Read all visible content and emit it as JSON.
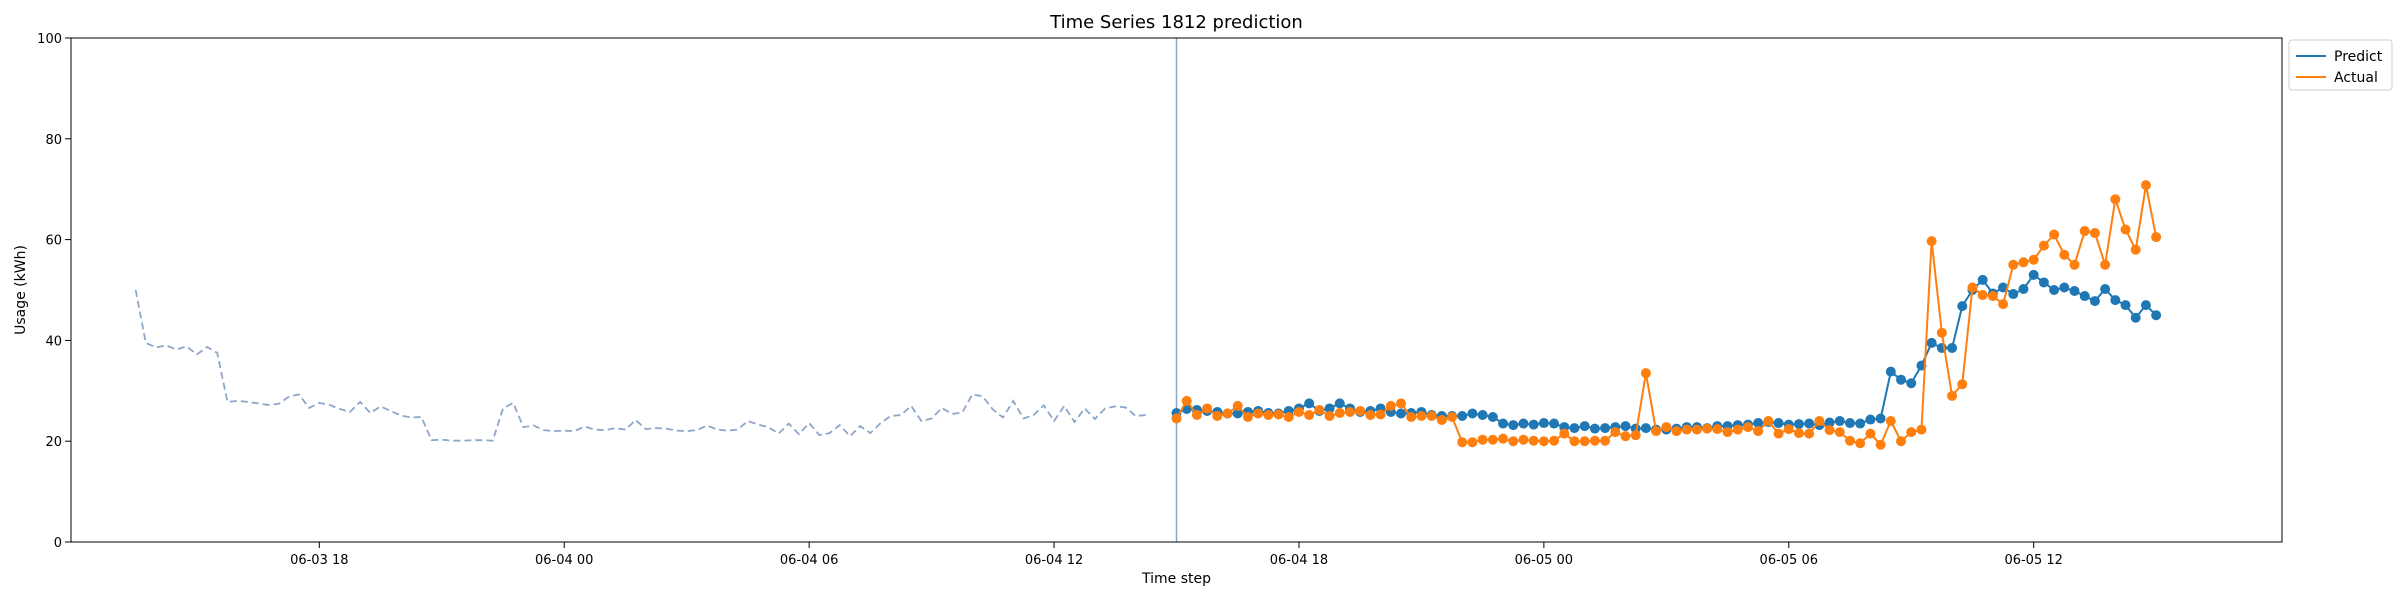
{
  "chart_data": {
    "type": "line",
    "title": "Time Series 1812 prediction",
    "xlabel": "Time step",
    "ylabel": "Usage (kWh)",
    "ylim": [
      0,
      100
    ],
    "y_ticks": [
      "0",
      "20",
      "40",
      "60",
      "80",
      "100"
    ],
    "x_start": "2023-06-03 13:30",
    "x_end": "2023-06-05 16:15",
    "x_view": [
      "2023-06-03 11:55",
      "2023-06-05 18:05"
    ],
    "x_ticks": [
      {
        "t": "2023-06-03 18:00",
        "label": "06-03 18"
      },
      {
        "t": "2023-06-04 00:00",
        "label": "06-04 00"
      },
      {
        "t": "2023-06-04 06:00",
        "label": "06-04 06"
      },
      {
        "t": "2023-06-04 12:00",
        "label": "06-04 12"
      },
      {
        "t": "2023-06-04 18:00",
        "label": "06-04 18"
      },
      {
        "t": "2023-06-05 00:00",
        "label": "06-05 00"
      },
      {
        "t": "2023-06-05 06:00",
        "label": "06-05 06"
      },
      {
        "t": "2023-06-05 12:00",
        "label": "06-05 12"
      }
    ],
    "split_time": "2023-06-04 15:00",
    "legend_position": "top-right outside",
    "colors": {
      "history": "#8ea6c9",
      "predict": "#1f77b4",
      "actual": "#ff7f0e",
      "split": "#8ea6c9"
    },
    "series": [
      {
        "name": "",
        "style": "dashed",
        "start": "2023-06-03 13:30",
        "step_minutes": 15,
        "values": [
          50.0,
          39.5,
          38.6,
          39.0,
          38.2,
          38.8,
          37.2,
          38.7,
          37.5,
          27.8,
          28.0,
          27.8,
          27.5,
          27.2,
          27.4,
          28.8,
          29.3,
          26.6,
          27.6,
          27.2,
          26.4,
          25.8,
          27.8,
          25.6,
          26.9,
          26.0,
          25.1,
          24.7,
          24.8,
          20.2,
          20.3,
          20.1,
          20.1,
          20.2,
          20.2,
          20.1,
          26.5,
          27.6,
          22.8,
          23.1,
          22.2,
          22.0,
          22.1,
          22.0,
          22.9,
          22.3,
          22.2,
          22.6,
          22.3,
          24.2,
          22.4,
          22.6,
          22.5,
          22.1,
          22.0,
          22.2,
          23.1,
          22.3,
          22.1,
          22.3,
          24.0,
          23.3,
          22.8,
          21.5,
          23.5,
          21.4,
          23.6,
          21.2,
          21.6,
          23.2,
          21.0,
          23.0,
          21.6,
          23.6,
          25.0,
          25.2,
          27.0,
          24.0,
          24.5,
          26.6,
          25.4,
          25.7,
          29.3,
          28.9,
          26.3,
          24.7,
          28.0,
          24.5,
          25.2,
          27.1,
          24.0,
          27.0,
          23.8,
          26.5,
          24.4,
          26.5,
          26.9,
          26.7,
          25.0,
          25.2
        ]
      },
      {
        "name": "Predict",
        "start": "2023-06-04 15:00",
        "step_minutes": 15,
        "values": [
          25.6,
          26.4,
          26.2,
          26.0,
          25.8,
          25.5,
          25.5,
          25.8,
          26.0,
          25.6,
          25.5,
          26.0,
          26.5,
          27.5,
          26.0,
          26.5,
          27.5,
          26.5,
          25.8,
          26.0,
          26.5,
          25.8,
          25.5,
          25.6,
          25.8,
          25.2,
          25.0,
          25.0,
          25.0,
          25.5,
          25.2,
          24.8,
          23.5,
          23.2,
          23.5,
          23.3,
          23.6,
          23.5,
          22.8,
          22.6,
          23.0,
          22.5,
          22.6,
          22.8,
          23.0,
          22.5,
          22.6,
          22.3,
          22.3,
          22.5,
          22.8,
          22.8,
          22.6,
          23.0,
          23.0,
          23.2,
          23.3,
          23.6,
          23.8,
          23.6,
          23.3,
          23.4,
          23.5,
          23.2,
          23.7,
          24.0,
          23.6,
          23.5,
          24.3,
          24.5,
          33.8,
          32.2,
          31.5,
          35.0,
          39.5,
          38.5,
          38.5,
          46.8,
          50.0,
          52.0,
          49.3,
          50.5,
          49.2,
          50.2,
          53.0,
          51.5,
          50.0,
          50.5,
          49.8,
          48.8,
          47.8,
          50.2,
          48.0,
          47.0,
          44.5,
          47.0,
          45.0
        ]
      },
      {
        "name": "Actual",
        "start": "2023-06-04 15:00",
        "step_minutes": 15,
        "values": [
          24.5,
          28.0,
          25.2,
          26.5,
          25.0,
          25.5,
          27.0,
          24.8,
          25.5,
          25.2,
          25.3,
          24.8,
          25.8,
          25.2,
          26.2,
          25.0,
          25.6,
          25.8,
          26.0,
          25.2,
          25.3,
          27.0,
          27.5,
          24.8,
          25.0,
          25.0,
          24.2,
          24.8,
          19.8,
          19.8,
          20.3,
          20.3,
          20.5,
          20.0,
          20.3,
          20.1,
          20.0,
          20.1,
          21.5,
          20.0,
          20.0,
          20.1,
          20.1,
          21.8,
          21.0,
          21.2,
          33.5,
          22.0,
          22.8,
          22.0,
          22.3,
          22.3,
          22.5,
          22.4,
          21.8,
          22.3,
          22.8,
          22.0,
          24.0,
          21.5,
          22.4,
          21.6,
          21.5,
          24.0,
          22.2,
          21.8,
          20.1,
          19.6,
          21.5,
          19.3,
          24.0,
          20.0,
          21.8,
          22.3,
          59.7,
          41.5,
          29.0,
          31.3,
          50.5,
          49.0,
          48.8,
          47.2,
          55.0,
          55.5,
          56.0,
          58.8,
          61.0,
          57.0,
          55.0,
          61.7,
          61.3,
          55.0,
          68.0,
          62.0,
          58.0,
          70.8,
          60.5
        ]
      }
    ]
  }
}
